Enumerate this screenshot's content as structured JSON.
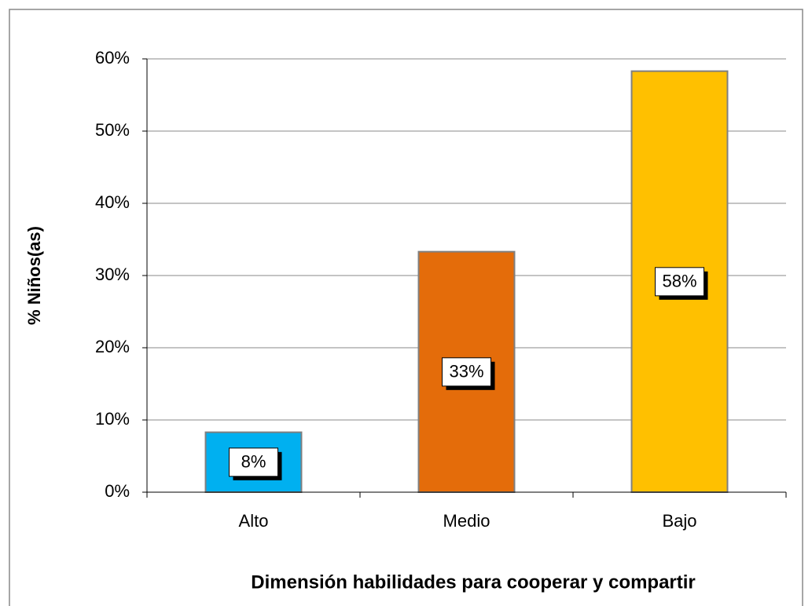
{
  "chart_data": {
    "type": "bar",
    "categories": [
      "Alto",
      "Medio",
      "Bajo"
    ],
    "values": [
      8.3,
      33.3,
      58.3
    ],
    "value_labels": [
      "8%",
      "33%",
      "58%"
    ],
    "colors": [
      "#00b0f0",
      "#e46c0a",
      "#ffc000"
    ],
    "y_label": "% Niños(as)",
    "x_label": "Dimensión habilidades para cooperar y compartir",
    "ylim": [
      0,
      60
    ],
    "yticks": [
      {
        "value": 0,
        "label": "0%"
      },
      {
        "value": 10,
        "label": "10%"
      },
      {
        "value": 20,
        "label": "20%"
      },
      {
        "value": 30,
        "label": "30%"
      },
      {
        "value": 40,
        "label": "40%"
      },
      {
        "value": 50,
        "label": "50%"
      },
      {
        "value": 60,
        "label": "60%"
      }
    ],
    "grid": true
  }
}
